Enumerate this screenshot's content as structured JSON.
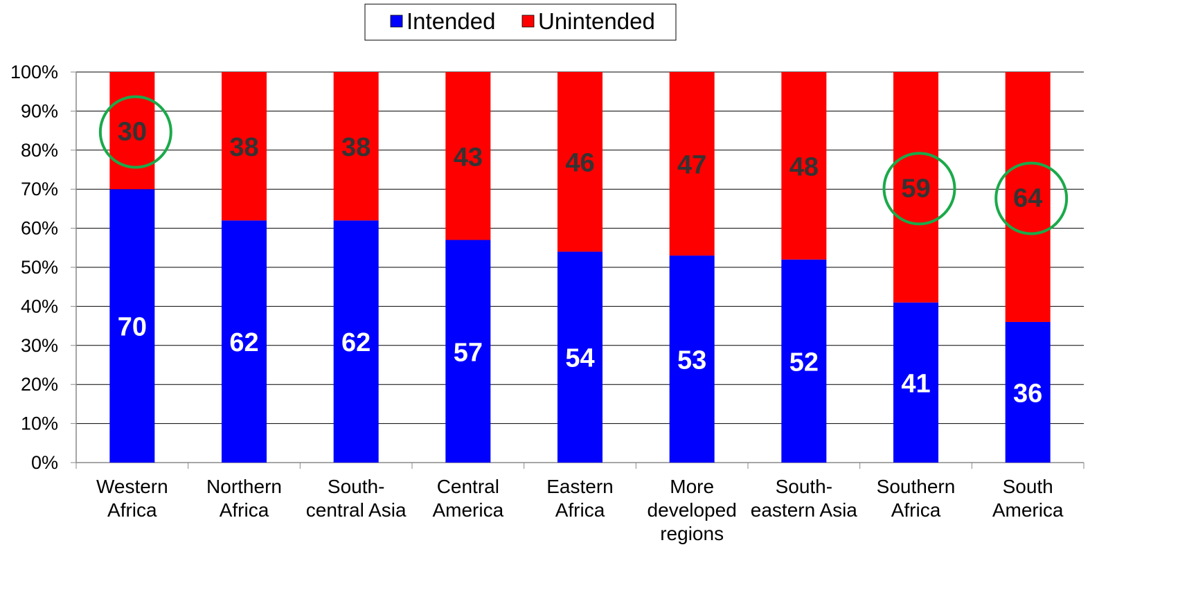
{
  "chart_data": {
    "type": "bar",
    "stacked": true,
    "percent": true,
    "categories": [
      [
        "Western",
        "Africa"
      ],
      [
        "Northern",
        "Africa"
      ],
      [
        "South-",
        "central Asia"
      ],
      [
        "Central",
        "America"
      ],
      [
        "Eastern",
        "Africa"
      ],
      [
        "More",
        "developed",
        "regions"
      ],
      [
        "South-",
        "eastern Asia"
      ],
      [
        "Southern",
        "Africa"
      ],
      [
        "South",
        "America"
      ]
    ],
    "series": [
      {
        "name": "Intended",
        "color": "#0000ff",
        "values": [
          70,
          62,
          62,
          57,
          54,
          53,
          52,
          41,
          36
        ]
      },
      {
        "name": "Unintended",
        "color": "#ff0000",
        "values": [
          30,
          38,
          38,
          43,
          46,
          47,
          48,
          59,
          64
        ]
      }
    ],
    "ylim": [
      0,
      100
    ],
    "yticks": [
      "0%",
      "10%",
      "20%",
      "30%",
      "40%",
      "50%",
      "60%",
      "70%",
      "80%",
      "90%",
      "100%"
    ],
    "grid": true,
    "legend": {
      "position": "top-center",
      "entries": [
        "Intended",
        "Unintended"
      ]
    },
    "highlighted_categories": [
      0,
      7,
      8
    ],
    "highlight_color": "#1aaa4a"
  }
}
